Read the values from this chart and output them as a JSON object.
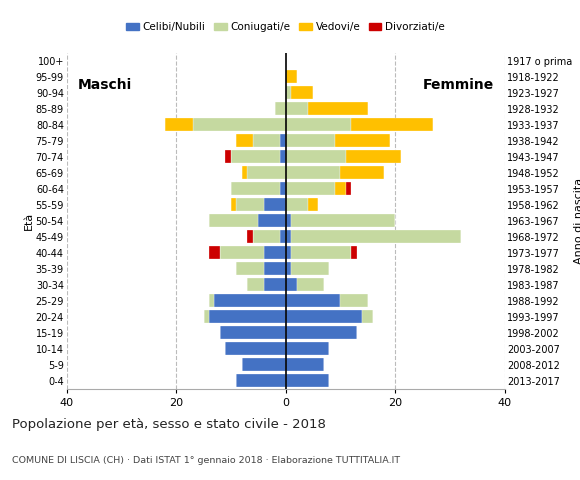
{
  "age_groups": [
    "0-4",
    "5-9",
    "10-14",
    "15-19",
    "20-24",
    "25-29",
    "30-34",
    "35-39",
    "40-44",
    "45-49",
    "50-54",
    "55-59",
    "60-64",
    "65-69",
    "70-74",
    "75-79",
    "80-84",
    "85-89",
    "90-94",
    "95-99",
    "100+"
  ],
  "birth_years": [
    "2013-2017",
    "2008-2012",
    "2003-2007",
    "1998-2002",
    "1993-1997",
    "1988-1992",
    "1983-1987",
    "1978-1982",
    "1973-1977",
    "1968-1972",
    "1963-1967",
    "1958-1962",
    "1953-1957",
    "1948-1952",
    "1943-1947",
    "1938-1942",
    "1933-1937",
    "1928-1932",
    "1923-1927",
    "1918-1922",
    "1917 o prima"
  ],
  "male": {
    "celibi": [
      9,
      8,
      11,
      12,
      14,
      13,
      4,
      4,
      4,
      1,
      5,
      4,
      1,
      0,
      1,
      1,
      0,
      0,
      0,
      0,
      0
    ],
    "coniugati": [
      0,
      0,
      0,
      0,
      1,
      1,
      3,
      5,
      8,
      5,
      9,
      5,
      9,
      7,
      9,
      5,
      17,
      2,
      0,
      0,
      0
    ],
    "vedovi": [
      0,
      0,
      0,
      0,
      0,
      0,
      0,
      0,
      0,
      0,
      0,
      1,
      0,
      1,
      0,
      3,
      5,
      0,
      0,
      0,
      0
    ],
    "divorziati": [
      0,
      0,
      0,
      0,
      0,
      0,
      0,
      0,
      2,
      1,
      0,
      0,
      0,
      0,
      1,
      0,
      0,
      0,
      0,
      0,
      0
    ]
  },
  "female": {
    "celibi": [
      8,
      7,
      8,
      13,
      14,
      10,
      2,
      1,
      1,
      1,
      1,
      0,
      0,
      0,
      0,
      0,
      0,
      0,
      0,
      0,
      0
    ],
    "coniugati": [
      0,
      0,
      0,
      0,
      2,
      5,
      5,
      7,
      11,
      31,
      19,
      4,
      9,
      10,
      11,
      9,
      12,
      4,
      1,
      0,
      0
    ],
    "vedovi": [
      0,
      0,
      0,
      0,
      0,
      0,
      0,
      0,
      0,
      0,
      0,
      2,
      2,
      8,
      10,
      10,
      15,
      11,
      4,
      2,
      0
    ],
    "divorziati": [
      0,
      0,
      0,
      0,
      0,
      0,
      0,
      0,
      1,
      0,
      0,
      0,
      1,
      0,
      0,
      0,
      0,
      0,
      0,
      0,
      0
    ]
  },
  "colors": {
    "celibi": "#4472c4",
    "coniugati": "#c5d9a0",
    "vedovi": "#ffc000",
    "divorziati": "#cc0000"
  },
  "legend_labels": [
    "Celibi/Nubili",
    "Coniugati/e",
    "Vedovi/e",
    "Divorziati/e"
  ],
  "title": "Popolazione per età, sesso e stato civile - 2018",
  "subtitle": "COMUNE DI LISCIA (CH) · Dati ISTAT 1° gennaio 2018 · Elaborazione TUTTITALIA.IT",
  "xlabel_maschi": "Maschi",
  "xlabel_femmine": "Femmine",
  "ylabel_eta": "Età",
  "ylabel_nascita": "Anno di nascita",
  "xlim": 40,
  "background_color": "#ffffff",
  "grid_color": "#bbbbbb"
}
